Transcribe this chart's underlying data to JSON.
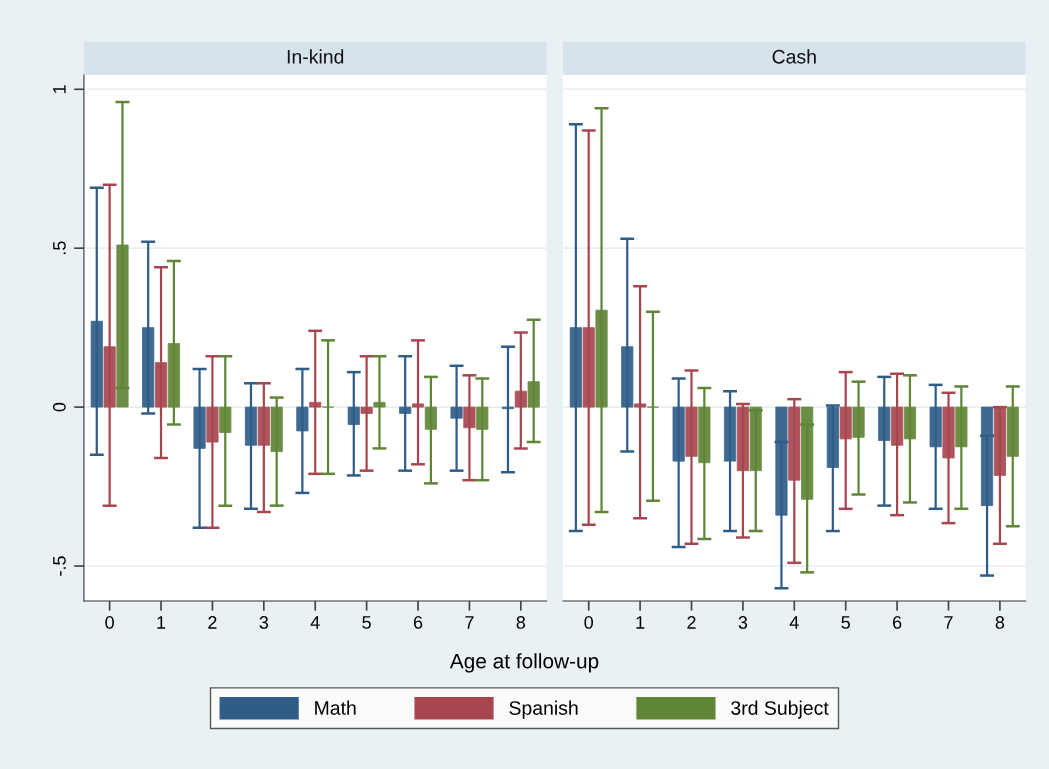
{
  "chart_data": [
    {
      "type": "bar",
      "title": "In-kind",
      "xlabel": "Age at follow-up",
      "categories": [
        "0",
        "1",
        "2",
        "3",
        "4",
        "5",
        "6",
        "7",
        "8"
      ],
      "ylim": [
        -0.61,
        1.045
      ],
      "yticks": [
        {
          "value": -0.5,
          "label": "-.5"
        },
        0,
        {
          "value": 0.5,
          "label": ".5"
        },
        1
      ],
      "grid": "y",
      "legend": "bottom",
      "series": [
        {
          "name": "Math",
          "color": "#2f5d88",
          "values": [
            0.27,
            0.25,
            -0.13,
            -0.12,
            -0.075,
            -0.055,
            -0.02,
            -0.035,
            -0.005
          ],
          "errors": [
            [
              -0.15,
              0.69
            ],
            [
              -0.02,
              0.52
            ],
            [
              -0.38,
              0.12
            ],
            [
              -0.32,
              0.075
            ],
            [
              -0.27,
              0.12
            ],
            [
              -0.215,
              0.11
            ],
            [
              -0.2,
              0.16
            ],
            [
              -0.2,
              0.13
            ],
            [
              -0.205,
              0.19
            ]
          ]
        },
        {
          "name": "Spanish",
          "color": "#a8464f",
          "values": [
            0.19,
            0.14,
            -0.11,
            -0.12,
            0.015,
            -0.02,
            0.01,
            -0.065,
            0.05
          ],
          "errors": [
            [
              -0.31,
              0.7
            ],
            [
              -0.16,
              0.44
            ],
            [
              -0.38,
              0.16
            ],
            [
              -0.33,
              0.075
            ],
            [
              -0.21,
              0.24
            ],
            [
              -0.2,
              0.16
            ],
            [
              -0.18,
              0.21
            ],
            [
              -0.23,
              0.1
            ],
            [
              -0.13,
              0.235
            ]
          ]
        },
        {
          "name": "3rd Subject",
          "color": "#5f8537",
          "values": [
            0.51,
            0.2,
            -0.08,
            -0.14,
            0.0,
            0.015,
            -0.07,
            -0.07,
            0.08
          ],
          "errors": [
            [
              0.06,
              0.96
            ],
            [
              -0.055,
              0.46
            ],
            [
              -0.31,
              0.16
            ],
            [
              -0.31,
              0.03
            ],
            [
              -0.21,
              0.21
            ],
            [
              -0.13,
              0.16
            ],
            [
              -0.24,
              0.095
            ],
            [
              -0.23,
              0.09
            ],
            [
              -0.11,
              0.275
            ]
          ]
        }
      ]
    },
    {
      "type": "bar",
      "title": "Cash",
      "categories": [
        "0",
        "1",
        "2",
        "3",
        "4",
        "5",
        "6",
        "7",
        "8"
      ],
      "ylim": [
        -0.61,
        1.045
      ],
      "yticks": [
        {
          "value": -0.5,
          "label": null
        },
        {
          "value": 0,
          "label": null
        },
        {
          "value": 0.5,
          "label": null
        },
        {
          "value": 1,
          "label": null
        }
      ],
      "grid": "y",
      "tick_labels": "x",
      "series": [
        {
          "color": "#2f5d88",
          "values": [
            0.25,
            0.19,
            -0.17,
            -0.17,
            -0.34,
            -0.19,
            -0.105,
            -0.125,
            -0.31
          ],
          "errors": [
            [
              -0.39,
              0.89
            ],
            [
              -0.14,
              0.53
            ],
            [
              -0.44,
              0.09
            ],
            [
              -0.39,
              0.05
            ],
            [
              -0.57,
              -0.11
            ],
            [
              -0.39,
              0.005
            ],
            [
              -0.31,
              0.095
            ],
            [
              -0.32,
              0.07
            ],
            [
              -0.53,
              -0.09
            ]
          ]
        },
        {
          "color": "#a8464f",
          "values": [
            0.25,
            0.01,
            -0.155,
            -0.2,
            -0.23,
            -0.1,
            -0.12,
            -0.16,
            -0.215
          ],
          "errors": [
            [
              -0.37,
              0.87
            ],
            [
              -0.35,
              0.38
            ],
            [
              -0.43,
              0.115
            ],
            [
              -0.41,
              0.01
            ],
            [
              -0.49,
              0.025
            ],
            [
              -0.32,
              0.11
            ],
            [
              -0.34,
              0.105
            ],
            [
              -0.365,
              0.045
            ],
            [
              -0.43,
              0.0
            ]
          ]
        },
        {
          "color": "#5f8537",
          "values": [
            0.305,
            0.0,
            -0.175,
            -0.2,
            -0.29,
            -0.095,
            -0.1,
            -0.125,
            -0.155
          ],
          "errors": [
            [
              -0.33,
              0.94
            ],
            [
              -0.295,
              0.3
            ],
            [
              -0.415,
              0.06
            ],
            [
              -0.39,
              -0.01
            ],
            [
              -0.52,
              -0.055
            ],
            [
              -0.275,
              0.08
            ],
            [
              -0.3,
              0.1
            ],
            [
              -0.32,
              0.065
            ],
            [
              -0.375,
              0.065
            ]
          ]
        }
      ]
    }
  ]
}
